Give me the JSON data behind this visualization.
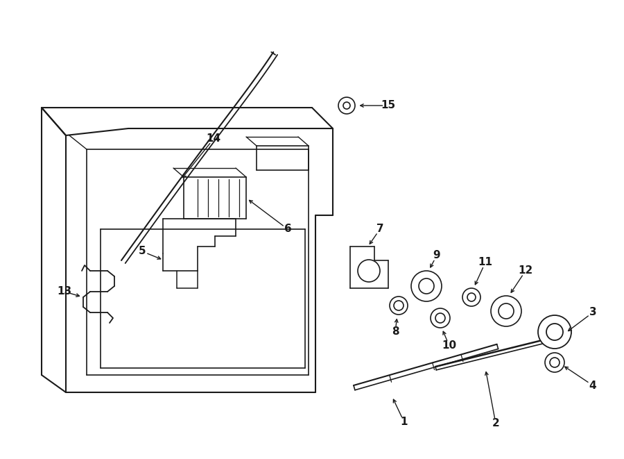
{
  "background_color": "#ffffff",
  "line_color": "#1a1a1a",
  "lw": 1.3,
  "fig_width": 9.0,
  "fig_height": 6.61
}
